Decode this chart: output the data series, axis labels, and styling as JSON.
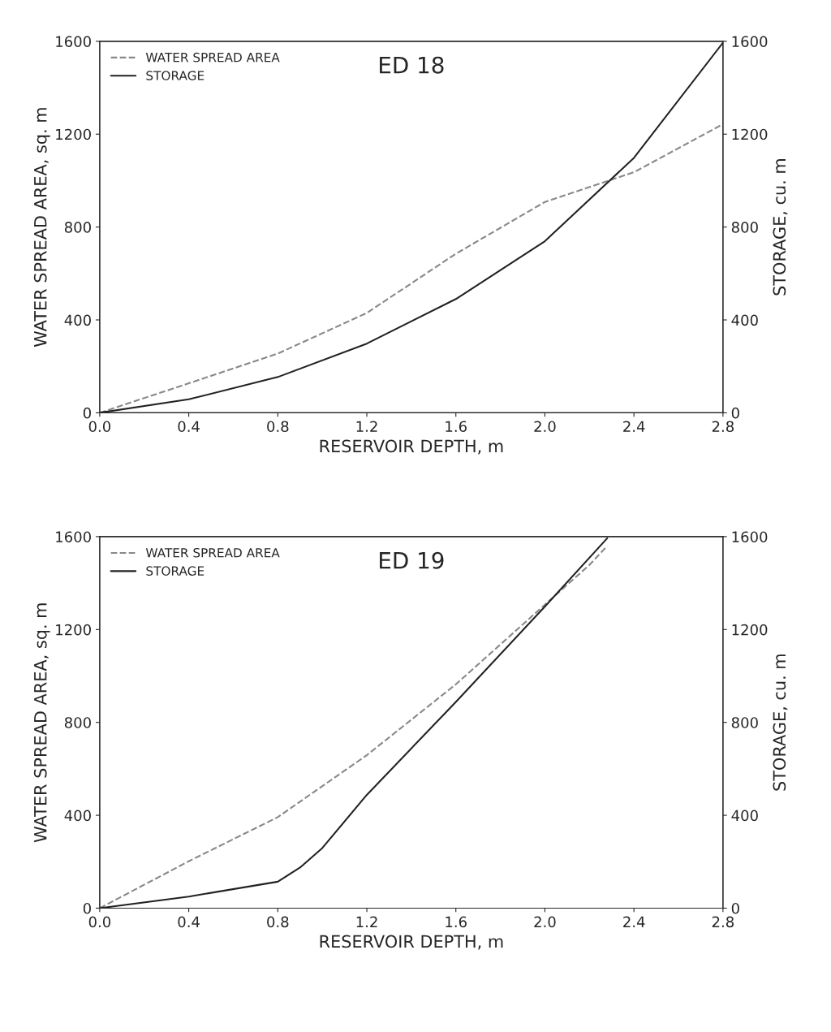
{
  "chart_data": [
    {
      "type": "line",
      "title": "ED 18",
      "xlabel": "RESERVOIR DEPTH, m",
      "ylabel": "WATER SPREAD AREA, sq. m",
      "y2label": "STORAGE, cu. m",
      "xlim": [
        0,
        2.8
      ],
      "ylim": [
        0,
        1600
      ],
      "y2lim": [
        0,
        1600
      ],
      "xticks": [
        {
          "value": 0,
          "label": "0.0"
        },
        {
          "value": 0.4,
          "label": "0.4"
        },
        {
          "value": 0.8,
          "label": "0.8"
        },
        {
          "value": 1.2,
          "label": "1.2"
        },
        {
          "value": 1.6,
          "label": "1.6"
        },
        {
          "value": 2.0,
          "label": "2.0"
        },
        {
          "value": 2.4,
          "label": "2.4"
        },
        {
          "value": 2.8,
          "label": "2.8"
        }
      ],
      "yticks": [
        0,
        400,
        800,
        1200,
        1600
      ],
      "y2ticks": [
        0,
        400,
        800,
        1200,
        1600
      ],
      "x": [
        0,
        0.4,
        0.8,
        1.2,
        1.6,
        2.0,
        2.4,
        2.8
      ],
      "series": [
        {
          "name": "WATER SPREAD AREA",
          "color": "#888888",
          "line_style": "dashed",
          "values": [
            0,
            127,
            255,
            430,
            685,
            908,
            1036,
            1243
          ]
        },
        {
          "name": "STORAGE",
          "color": "#222222",
          "line_style": "solid",
          "axis": "y2",
          "values": [
            0,
            58,
            154,
            298,
            490,
            739,
            1098,
            1594
          ]
        }
      ],
      "legend": "top left",
      "grid": false
    },
    {
      "type": "line",
      "title": "ED 19",
      "xlabel": "RESERVOIR DEPTH, m",
      "ylabel": "WATER SPREAD AREA, sq. m",
      "y2label": "STORAGE, cu. m",
      "xlim": [
        0,
        2.8
      ],
      "ylim": [
        0,
        1600
      ],
      "y2lim": [
        0,
        1600
      ],
      "xticks": [
        {
          "value": 0,
          "label": "0.0"
        },
        {
          "value": 0.4,
          "label": "0.4"
        },
        {
          "value": 0.8,
          "label": "0.8"
        },
        {
          "value": 1.2,
          "label": "1.2"
        },
        {
          "value": 1.6,
          "label": "1.6"
        },
        {
          "value": 2.0,
          "label": "2.0"
        },
        {
          "value": 2.4,
          "label": "2.4"
        },
        {
          "value": 2.8,
          "label": "2.8"
        }
      ],
      "yticks": [
        0,
        400,
        800,
        1200,
        1600
      ],
      "y2ticks": [
        0,
        400,
        800,
        1200,
        1600
      ],
      "series": [
        {
          "name": "WATER SPREAD AREA",
          "color": "#888888",
          "line_style": "dashed",
          "x": [
            0,
            0.4,
            0.8,
            1.2,
            1.6,
            2.0,
            2.2,
            2.28
          ],
          "values": [
            0,
            202,
            392,
            659,
            964,
            1307,
            1478,
            1560
          ]
        },
        {
          "name": "STORAGE",
          "color": "#222222",
          "line_style": "solid",
          "axis": "y2",
          "x": [
            0,
            0.4,
            0.8,
            0.9,
            1.0,
            1.2,
            1.6,
            2.0,
            2.28
          ],
          "values": [
            0,
            50,
            114,
            175,
            259,
            488,
            888,
            1299,
            1593
          ]
        }
      ],
      "legend": "top left",
      "grid": false
    }
  ]
}
